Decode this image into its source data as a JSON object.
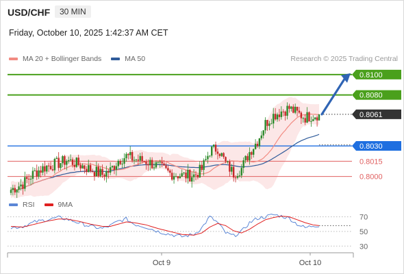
{
  "header": {
    "symbol": "USD/CHF",
    "timeframe": "30 MIN",
    "datetime": "Friday, October 10, 2025 1:42:37 AM CET"
  },
  "legend_top": [
    {
      "label": "MA 20 + Bollinger Bands",
      "color": "#f28b82"
    },
    {
      "label": "MA 50",
      "color": "#2f5b9a"
    }
  ],
  "copyright": "Research © 2025 Trading Central",
  "legend_bottom": [
    {
      "label": "RSI",
      "color": "#5b87d6"
    },
    {
      "label": "9MA",
      "color": "#e02020"
    }
  ],
  "colors": {
    "up": "#2a8a2a",
    "down": "#c62828",
    "resistance": "#4aa01c",
    "current": "#333333",
    "pivot": "#1f6fe0",
    "support": "#e06060",
    "ma50": "#2f5b9a",
    "ma20": "#f28b82",
    "band_fill": "#fbe3e3",
    "arrow": "#2f64b4"
  },
  "chart_data": [
    {
      "type": "candlestick",
      "title": "USD/CHF 30 MIN",
      "y_range": [
        0.7985,
        0.811
      ],
      "x_ticks": [
        "Oct 9",
        "Oct 10"
      ],
      "levels": [
        {
          "value": 0.81,
          "label": "0.8100",
          "kind": "resistance"
        },
        {
          "value": 0.808,
          "label": "0.8080",
          "kind": "resistance"
        },
        {
          "value": 0.8061,
          "label": "0.8061",
          "kind": "current"
        },
        {
          "value": 0.803,
          "label": "0.8030",
          "kind": "pivot"
        },
        {
          "value": 0.8015,
          "label": "0.8015",
          "kind": "support"
        },
        {
          "value": 0.8,
          "label": "0.8000",
          "kind": "support"
        }
      ],
      "projection": {
        "direction": "up",
        "from": 0.8061,
        "to": 0.81
      },
      "anchors": [
        [
          0,
          0.7987
        ],
        [
          6,
          0.7993
        ],
        [
          12,
          0.8004
        ],
        [
          18,
          0.801
        ],
        [
          24,
          0.8013
        ],
        [
          28,
          0.8016
        ],
        [
          34,
          0.8012
        ],
        [
          40,
          0.8007
        ],
        [
          46,
          0.8002
        ],
        [
          50,
          0.8006
        ],
        [
          54,
          0.8016
        ],
        [
          58,
          0.802
        ],
        [
          62,
          0.8017
        ],
        [
          68,
          0.8015
        ],
        [
          74,
          0.801
        ],
        [
          80,
          0.8003
        ],
        [
          86,
          0.8001
        ],
        [
          92,
          0.8001
        ],
        [
          96,
          0.8007
        ],
        [
          100,
          0.8025
        ],
        [
          104,
          0.8028
        ],
        [
          108,
          0.8013
        ],
        [
          112,
          0.8003
        ],
        [
          116,
          0.8008
        ],
        [
          120,
          0.8024
        ],
        [
          124,
          0.8035
        ],
        [
          128,
          0.8052
        ],
        [
          132,
          0.806
        ],
        [
          136,
          0.8064
        ],
        [
          140,
          0.8067
        ],
        [
          144,
          0.8062
        ],
        [
          148,
          0.8058
        ],
        [
          152,
          0.806
        ],
        [
          155,
          0.8061
        ]
      ]
    },
    {
      "type": "line",
      "title": "RSI",
      "y_ticks": [
        70,
        50,
        30
      ],
      "y_range": [
        20,
        78
      ],
      "series": [
        {
          "name": "RSI",
          "anchors": [
            [
              0,
              55
            ],
            [
              6,
              57
            ],
            [
              12,
              63
            ],
            [
              18,
              66
            ],
            [
              24,
              69
            ],
            [
              28,
              67
            ],
            [
              34,
              62
            ],
            [
              40,
              57
            ],
            [
              46,
              54
            ],
            [
              50,
              58
            ],
            [
              54,
              64
            ],
            [
              58,
              67
            ],
            [
              62,
              60
            ],
            [
              68,
              56
            ],
            [
              74,
              50
            ],
            [
              80,
              46
            ],
            [
              86,
              43
            ],
            [
              92,
              46
            ],
            [
              96,
              55
            ],
            [
              100,
              70
            ],
            [
              104,
              62
            ],
            [
              108,
              48
            ],
            [
              112,
              44
            ],
            [
              116,
              50
            ],
            [
              120,
              62
            ],
            [
              124,
              68
            ],
            [
              128,
              70
            ],
            [
              132,
              73
            ],
            [
              136,
              71
            ],
            [
              140,
              68
            ],
            [
              144,
              60
            ],
            [
              148,
              55
            ],
            [
              152,
              58
            ],
            [
              155,
              58
            ]
          ]
        },
        {
          "name": "9MA",
          "anchors": [
            [
              0,
              57
            ],
            [
              6,
              56
            ],
            [
              12,
              60
            ],
            [
              18,
              64
            ],
            [
              24,
              67
            ],
            [
              28,
              67
            ],
            [
              34,
              64
            ],
            [
              40,
              60
            ],
            [
              46,
              57
            ],
            [
              50,
              57
            ],
            [
              54,
              60
            ],
            [
              58,
              63
            ],
            [
              62,
              62
            ],
            [
              68,
              59
            ],
            [
              74,
              54
            ],
            [
              80,
              50
            ],
            [
              86,
              46
            ],
            [
              92,
              45
            ],
            [
              96,
              48
            ],
            [
              100,
              56
            ],
            [
              104,
              61
            ],
            [
              108,
              58
            ],
            [
              112,
              51
            ],
            [
              116,
              48
            ],
            [
              120,
              53
            ],
            [
              124,
              60
            ],
            [
              128,
              66
            ],
            [
              132,
              69
            ],
            [
              136,
              71
            ],
            [
              140,
              70
            ],
            [
              144,
              66
            ],
            [
              148,
              62
            ],
            [
              152,
              59
            ],
            [
              155,
              58
            ]
          ]
        }
      ]
    }
  ]
}
